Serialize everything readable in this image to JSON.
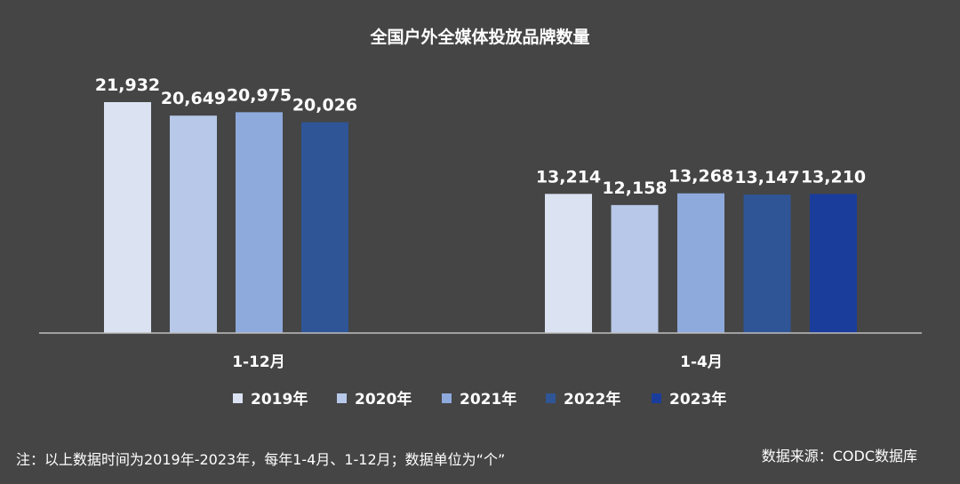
{
  "chart_data": {
    "type": "bar",
    "title": "全国户外全媒体投放品牌数量",
    "categories": [
      "1-12月",
      "1-4月"
    ],
    "series": [
      {
        "name": "2019年",
        "color": "#dbe3f3",
        "values": [
          21932,
          13214
        ]
      },
      {
        "name": "2020年",
        "color": "#b7c8e8",
        "values": [
          20649,
          12158
        ]
      },
      {
        "name": "2021年",
        "color": "#8eaadc",
        "values": [
          20975,
          13268
        ]
      },
      {
        "name": "2022年",
        "color": "#2f5597",
        "values": [
          20026,
          13147
        ]
      },
      {
        "name": "2023年",
        "color": "#1a3d9c",
        "values": [
          null,
          13210
        ]
      }
    ],
    "value_labels": [
      [
        "21,932",
        "13,214"
      ],
      [
        "20,649",
        "12,158"
      ],
      [
        "20,975",
        "13,268"
      ],
      [
        "20,026",
        "13,147"
      ],
      [
        null,
        "13,210"
      ]
    ],
    "ylim": [
      0,
      22500
    ],
    "grid": false,
    "legend_position": "bottom",
    "xlabel": "",
    "ylabel": ""
  },
  "footnote": "注：以上数据时间为2019年-2023年，每年1-4月、1-12月；数据单位为“个”",
  "source": "数据来源：CODC数据库"
}
